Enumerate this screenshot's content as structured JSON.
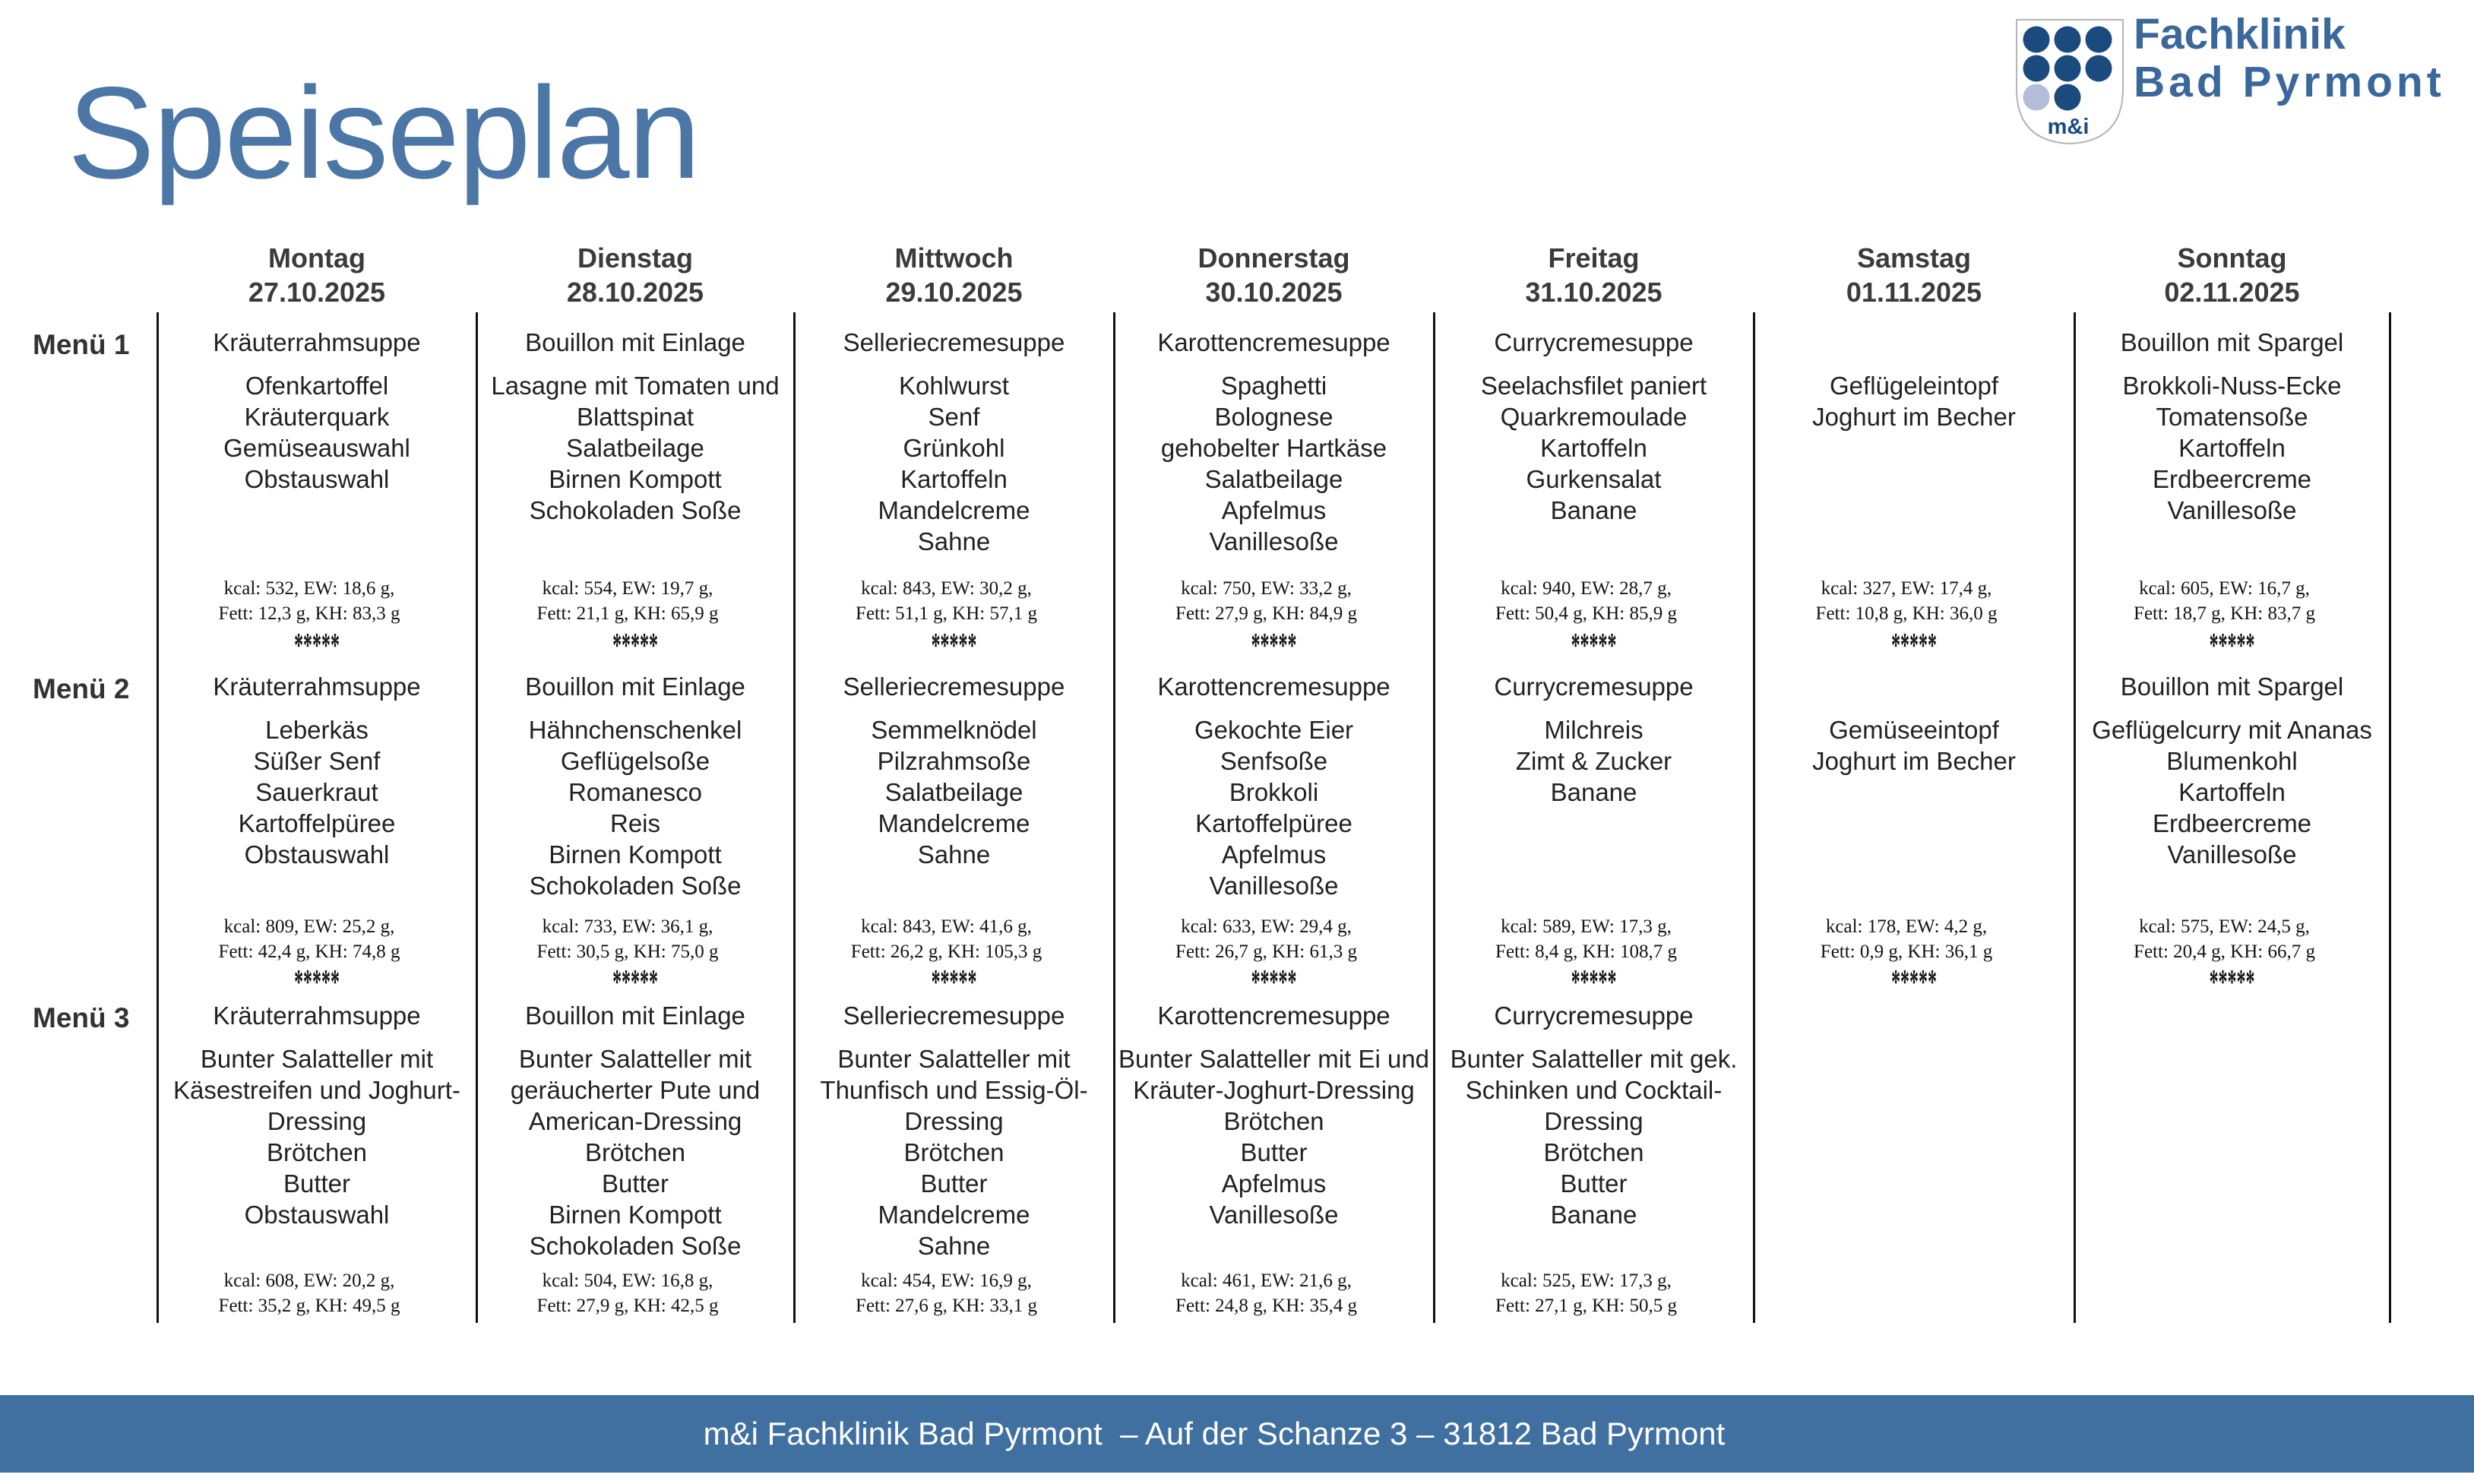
{
  "title": "Speiseplan",
  "logo": {
    "emblem_text": "m&i",
    "line1": "Fachklinik",
    "line2": "Bad Pyrmont",
    "colors": {
      "dot_dark": "#1b4a7e",
      "dot_light": "#b3bcd9",
      "text_blue": "#3a689b",
      "shield_outline": "#b0b0b0"
    }
  },
  "colors": {
    "title_blue": "#4c76a5",
    "footer_bar": "#40709f",
    "body_text": "#222222",
    "divider": "#111111"
  },
  "days": [
    {
      "name": "Montag",
      "date": "27.10.2025"
    },
    {
      "name": "Dienstag",
      "date": "28.10.2025"
    },
    {
      "name": "Mittwoch",
      "date": "29.10.2025"
    },
    {
      "name": "Donnerstag",
      "date": "30.10.2025"
    },
    {
      "name": "Freitag",
      "date": "31.10.2025"
    },
    {
      "name": "Samstag",
      "date": "01.11.2025"
    },
    {
      "name": "Sonntag",
      "date": "02.11.2025"
    }
  ],
  "menus": [
    {
      "label": "Menü 1",
      "cells": [
        {
          "soup": "Kräuterrahmsuppe",
          "items": [
            "Ofenkartoffel",
            "Kräuterquark",
            "Gemüseauswahl",
            "Obstauswahl"
          ],
          "nutrition": [
            "kcal: 532, EW: 18,6 g,",
            "Fett: 12,3 g, KH: 83,3 g"
          ],
          "separator": "*****"
        },
        {
          "soup": "Bouillon mit Einlage",
          "items": [
            "Lasagne mit Tomaten und",
            "Blattspinat",
            "Salatbeilage",
            "Birnen Kompott",
            "Schokoladen Soße"
          ],
          "nutrition": [
            "kcal: 554, EW: 19,7 g,",
            "Fett: 21,1 g, KH: 65,9 g"
          ],
          "separator": "*****"
        },
        {
          "soup": "Selleriecremesuppe",
          "items": [
            "Kohlwurst",
            "Senf",
            "Grünkohl",
            "Kartoffeln",
            "Mandelcreme",
            "Sahne"
          ],
          "nutrition": [
            "kcal: 843, EW: 30,2 g,",
            "Fett: 51,1 g, KH: 57,1 g"
          ],
          "separator": "*****"
        },
        {
          "soup": "Karottencremesuppe",
          "items": [
            "Spaghetti",
            "Bolognese",
            "gehobelter Hartkäse",
            "Salatbeilage",
            "Apfelmus",
            "Vanillesoße"
          ],
          "nutrition": [
            "kcal: 750, EW: 33,2 g,",
            "Fett: 27,9 g, KH: 84,9 g"
          ],
          "separator": "*****"
        },
        {
          "soup": "Currycremesuppe",
          "items": [
            "Seelachsfilet paniert",
            "Quarkremoulade",
            "Kartoffeln",
            "Gurkensalat",
            "Banane"
          ],
          "nutrition": [
            "kcal: 940, EW: 28,7 g,",
            "Fett: 50,4 g, KH: 85,9 g"
          ],
          "separator": "*****"
        },
        {
          "soup": null,
          "items": [
            "Geflügeleintopf",
            "Joghurt im Becher"
          ],
          "nutrition": [
            "kcal: 327, EW: 17,4 g,",
            "Fett: 10,8 g, KH: 36,0 g"
          ],
          "separator": "*****"
        },
        {
          "soup": "Bouillon mit Spargel",
          "items": [
            "Brokkoli-Nuss-Ecke",
            "Tomatensoße",
            "Kartoffeln",
            "Erdbeercreme",
            "Vanillesoße"
          ],
          "nutrition": [
            "kcal: 605, EW: 16,7 g,",
            "Fett: 18,7 g, KH: 83,7 g"
          ],
          "separator": "*****"
        }
      ]
    },
    {
      "label": "Menü 2",
      "cells": [
        {
          "soup": "Kräuterrahmsuppe",
          "items": [
            "Leberkäs",
            "Süßer Senf",
            "Sauerkraut",
            "Kartoffelpüree",
            "Obstauswahl"
          ],
          "nutrition": [
            "kcal: 809, EW: 25,2 g,",
            "Fett: 42,4 g, KH: 74,8 g"
          ],
          "separator": "*****"
        },
        {
          "soup": "Bouillon mit Einlage",
          "items": [
            "Hähnchenschenkel",
            "Geflügelsoße",
            "Romanesco",
            "Reis",
            "Birnen Kompott",
            "Schokoladen Soße"
          ],
          "nutrition": [
            "kcal: 733, EW: 36,1 g,",
            "Fett: 30,5 g, KH: 75,0 g"
          ],
          "separator": "*****"
        },
        {
          "soup": "Selleriecremesuppe",
          "items": [
            "Semmelknödel",
            "Pilzrahmsoße",
            "Salatbeilage",
            "Mandelcreme",
            "Sahne"
          ],
          "nutrition": [
            "kcal: 843, EW: 41,6 g,",
            "Fett: 26,2 g, KH: 105,3 g"
          ],
          "separator": "*****"
        },
        {
          "soup": "Karottencremesuppe",
          "items": [
            "Gekochte Eier",
            "Senfsoße",
            "Brokkoli",
            "Kartoffelpüree",
            "Apfelmus",
            "Vanillesoße"
          ],
          "nutrition": [
            "kcal: 633, EW: 29,4 g,",
            "Fett: 26,7 g, KH: 61,3 g"
          ],
          "separator": "*****"
        },
        {
          "soup": "Currycremesuppe",
          "items": [
            "Milchreis",
            "Zimt & Zucker",
            "Banane"
          ],
          "nutrition": [
            "kcal: 589, EW: 17,3 g,",
            "Fett: 8,4 g, KH: 108,7 g"
          ],
          "separator": "*****"
        },
        {
          "soup": null,
          "items": [
            "Gemüseeintopf",
            "Joghurt im Becher"
          ],
          "nutrition": [
            "kcal: 178, EW: 4,2 g,",
            "Fett: 0,9 g, KH: 36,1 g"
          ],
          "separator": "*****"
        },
        {
          "soup": "Bouillon mit Spargel",
          "items": [
            "Geflügelcurry mit Ananas",
            "Blumenkohl",
            "Kartoffeln",
            "Erdbeercreme",
            "Vanillesoße"
          ],
          "nutrition": [
            "kcal: 575, EW: 24,5 g,",
            "Fett: 20,4 g, KH: 66,7 g"
          ],
          "separator": "*****"
        }
      ]
    },
    {
      "label": "Menü 3",
      "cells": [
        {
          "soup": "Kräuterrahmsuppe",
          "items": [
            "Bunter Salatteller mit",
            "Käsestreifen und Joghurt-",
            "Dressing",
            "Brötchen",
            "Butter",
            "Obstauswahl"
          ],
          "nutrition": [
            "kcal: 608, EW: 20,2 g,",
            "Fett: 35,2 g, KH: 49,5 g"
          ],
          "separator": null
        },
        {
          "soup": "Bouillon mit Einlage",
          "items": [
            "Bunter Salatteller mit",
            "geräucherter Pute und",
            "American-Dressing",
            "Brötchen",
            "Butter",
            "Birnen Kompott",
            "Schokoladen Soße"
          ],
          "nutrition": [
            "kcal: 504, EW: 16,8 g,",
            "Fett: 27,9 g, KH: 42,5 g"
          ],
          "separator": null
        },
        {
          "soup": "Selleriecremesuppe",
          "items": [
            "Bunter Salatteller mit",
            "Thunfisch und Essig-Öl-",
            "Dressing",
            "Brötchen",
            "Butter",
            "Mandelcreme",
            "Sahne"
          ],
          "nutrition": [
            "kcal: 454, EW: 16,9 g,",
            "Fett: 27,6 g, KH: 33,1 g"
          ],
          "separator": null
        },
        {
          "soup": "Karottencremesuppe",
          "items": [
            "Bunter Salatteller mit Ei und",
            "Kräuter-Joghurt-Dressing",
            "Brötchen",
            "Butter",
            "Apfelmus",
            "Vanillesoße"
          ],
          "nutrition": [
            "kcal: 461, EW: 21,6 g,",
            "Fett: 24,8 g, KH: 35,4 g"
          ],
          "separator": null
        },
        {
          "soup": "Currycremesuppe",
          "items": [
            "Bunter Salatteller mit gek.",
            "Schinken und Cocktail-",
            "Dressing",
            "Brötchen",
            "Butter",
            "Banane"
          ],
          "nutrition": [
            "kcal: 525, EW: 17,3 g,",
            "Fett: 27,1 g, KH: 50,5 g"
          ],
          "separator": null
        },
        null,
        null
      ]
    }
  ],
  "footer": {
    "text": "m&i Fachklinik Bad Pyrmont  – Auf der Schanze 3 – 31812 Bad Pyrmont"
  }
}
